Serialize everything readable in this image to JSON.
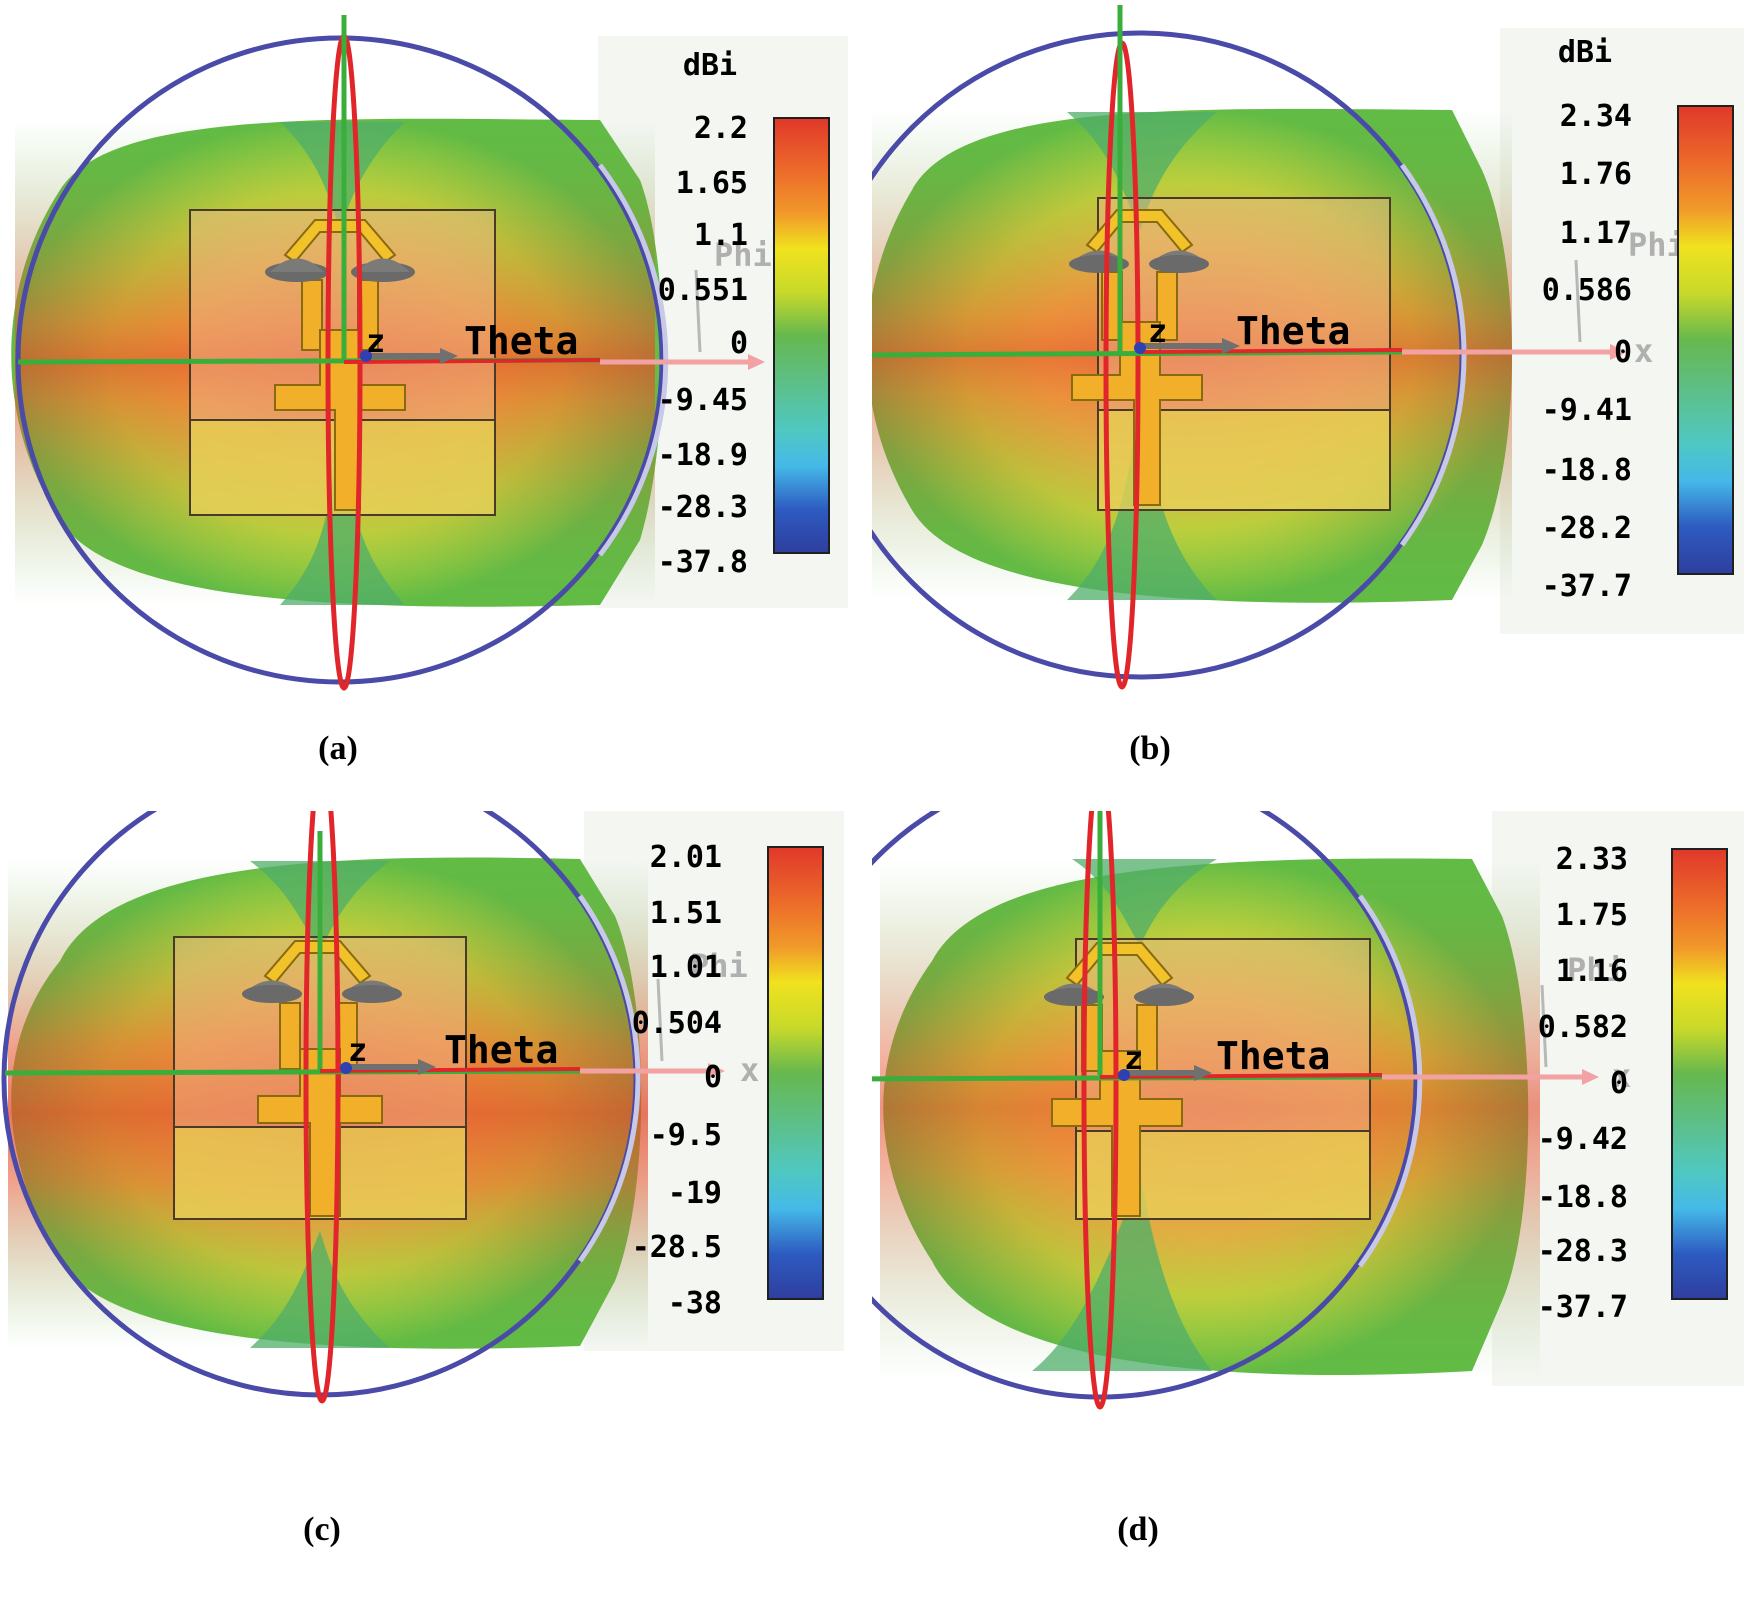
{
  "figure": {
    "unit_label": "dBi",
    "axis_labels": {
      "theta": "Theta",
      "phi": "Phi",
      "z": "z",
      "x": "x"
    },
    "colors": {
      "sphere_ring": "#4a4aa8",
      "meridian": "#e0262a",
      "axis_green": "#3aae3a",
      "arrow_gray": "#707070",
      "arrow_pink": "#f2a2a2",
      "legend_bg": "#f4f6f2"
    },
    "colormap": [
      "#2f3e9e",
      "#2d5bc1",
      "#3c8ede",
      "#45b9e8",
      "#4fc8c2",
      "#5cc08e",
      "#66b84e",
      "#8bc43a",
      "#c8d92a",
      "#f0e21e",
      "#f6c51c",
      "#f1992a",
      "#ec6a2a",
      "#e0382a"
    ],
    "panels": [
      {
        "caption": "(a)",
        "scale_ticks": [
          "2.2",
          "1.65",
          "1.1",
          "0.551",
          "0",
          "-9.45",
          "-18.9",
          "-28.3",
          "-37.8"
        ],
        "max_gain_dbi": 2.2,
        "min_gain_dbi": -37.8
      },
      {
        "caption": "(b)",
        "scale_ticks": [
          "2.34",
          "1.76",
          "1.17",
          "0.586",
          "0",
          "-9.41",
          "-18.8",
          "-28.2",
          "-37.7"
        ],
        "max_gain_dbi": 2.34,
        "min_gain_dbi": -37.7
      },
      {
        "caption": "(c)",
        "scale_ticks": [
          "2.01",
          "1.51",
          "1.01",
          "0.504",
          "0",
          "-9.5",
          "-19",
          "-28.5",
          "-38"
        ],
        "max_gain_dbi": 2.01,
        "min_gain_dbi": -38
      },
      {
        "caption": "(d)",
        "scale_ticks": [
          "2.33",
          "1.75",
          "1.16",
          "0.582",
          "0",
          "-9.42",
          "-18.8",
          "-28.3",
          "-37.7"
        ],
        "max_gain_dbi": 2.33,
        "min_gain_dbi": -37.7
      }
    ]
  }
}
